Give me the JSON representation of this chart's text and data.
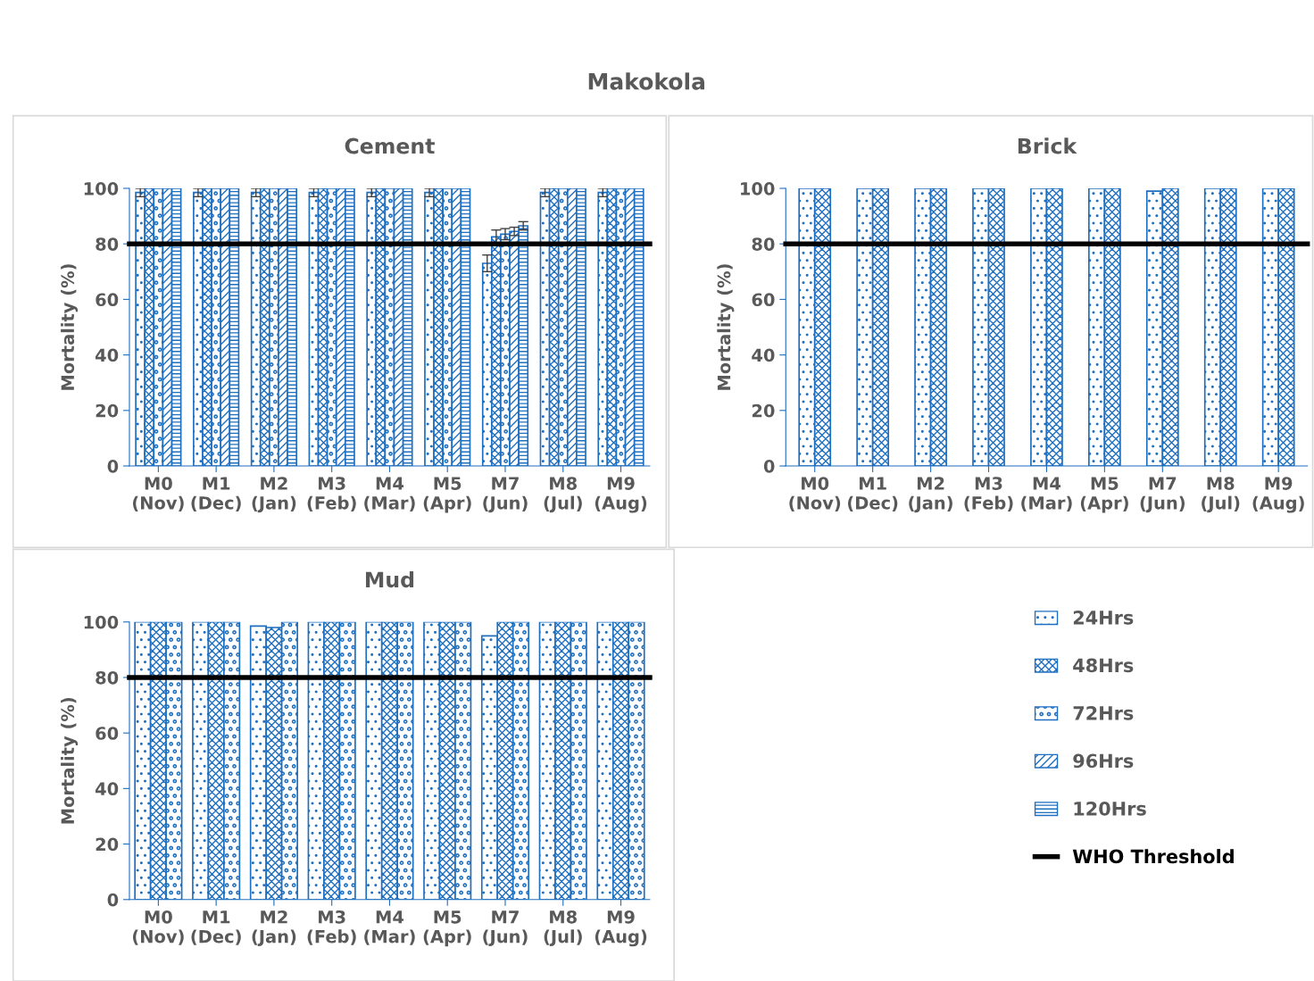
{
  "chart_data": [
    {
      "type": "bar",
      "title": "Cement",
      "ylabel": "Mortality (%)",
      "annotations": [
        "Makokola"
      ],
      "legend": "bottom right",
      "categories": [
        "M0\n(Nov)",
        "M1\n(Dec)",
        "M2\n(Jan)",
        "M3\n(Feb)",
        "M4\n(Mar)",
        "M5\n(Apr)",
        "M7\n(Jun)",
        "M8\n(Jul)",
        "M9\n(Aug)"
      ],
      "series": [
        {
          "name": "24Hrs",
          "color": "#1f6fc0",
          "values": [
            98.5,
            98.5,
            98.5,
            98.5,
            98.5,
            98.5,
            73,
            98.5,
            98.5
          ],
          "errors": [
            1.5,
            1.5,
            1.5,
            1.5,
            1.5,
            1.5,
            3,
            1.5,
            1.5
          ]
        },
        {
          "name": "48Hrs",
          "color": "#1f6fc0",
          "values": [
            100,
            100,
            100,
            100,
            100,
            100,
            82.5,
            100,
            100
          ],
          "errors": [
            null,
            null,
            null,
            null,
            null,
            null,
            2.5,
            null,
            null
          ]
        },
        {
          "name": "72Hrs",
          "color": "#1f6fc0",
          "values": [
            100,
            100,
            100,
            100,
            100,
            100,
            83.5,
            100,
            100
          ],
          "errors": [
            null,
            null,
            null,
            null,
            null,
            null,
            2,
            null,
            null
          ]
        },
        {
          "name": "96Hrs",
          "color": "#1f6fc0",
          "values": [
            100,
            100,
            100,
            100,
            100,
            100,
            84.5,
            100,
            100
          ],
          "errors": [
            null,
            null,
            null,
            null,
            null,
            null,
            1.5,
            null,
            null
          ]
        },
        {
          "name": "120Hrs",
          "color": "#1f6fc0",
          "values": [
            100,
            100,
            100,
            100,
            100,
            100,
            86.5,
            100,
            100
          ],
          "errors": [
            null,
            null,
            null,
            null,
            null,
            null,
            1.5,
            null,
            null
          ]
        }
      ],
      "ylim": [
        0,
        100
      ],
      "yticks": [
        0,
        20,
        40,
        60,
        80,
        100
      ],
      "grid": false,
      "ref_lines": [
        {
          "axis": "y",
          "value": 80,
          "label": "WHO Threshold",
          "color": "#000000"
        }
      ]
    },
    {
      "type": "bar",
      "title": "Brick",
      "ylabel": "Mortality (%)",
      "categories": [
        "M0\n(Nov)",
        "M1\n(Dec)",
        "M2\n(Jan)",
        "M3\n(Feb)",
        "M4\n(Mar)",
        "M5\n(Apr)",
        "M7\n(Jun)",
        "M8\n(Jul)",
        "M9\n(Aug)"
      ],
      "series": [
        {
          "name": "24Hrs",
          "color": "#1f6fc0",
          "values": [
            100,
            100,
            100,
            100,
            100,
            100,
            99,
            100,
            100
          ]
        },
        {
          "name": "48Hrs",
          "color": "#1f6fc0",
          "values": [
            100,
            100,
            100,
            100,
            100,
            100,
            100,
            100,
            100
          ]
        }
      ],
      "ylim": [
        0,
        100
      ],
      "yticks": [
        0,
        20,
        40,
        60,
        80,
        100
      ],
      "grid": false,
      "ref_lines": [
        {
          "axis": "y",
          "value": 80,
          "color": "#000000"
        }
      ]
    },
    {
      "type": "bar",
      "title": "Mud",
      "ylabel": "Mortality (%)",
      "categories": [
        "M0\n(Nov)",
        "M1\n(Dec)",
        "M2\n(Jan)",
        "M3\n(Feb)",
        "M4\n(Mar)",
        "M5\n(Apr)",
        "M7\n(Jun)",
        "M8\n(Jul)",
        "M9\n(Aug)"
      ],
      "series": [
        {
          "name": "24Hrs",
          "color": "#1f6fc0",
          "values": [
            100,
            100,
            98.5,
            100,
            100,
            100,
            95,
            100,
            100
          ]
        },
        {
          "name": "48Hrs",
          "color": "#1f6fc0",
          "values": [
            100,
            100,
            98,
            100,
            100,
            100,
            100,
            100,
            100
          ]
        },
        {
          "name": "72Hrs",
          "color": "#1f6fc0",
          "values": [
            100,
            100,
            100,
            100,
            100,
            100,
            100,
            100,
            100
          ]
        }
      ],
      "ylim": [
        0,
        100
      ],
      "yticks": [
        0,
        20,
        40,
        60,
        80,
        100
      ],
      "grid": false,
      "ref_lines": [
        {
          "axis": "y",
          "value": 80,
          "color": "#000000"
        }
      ]
    }
  ]
}
